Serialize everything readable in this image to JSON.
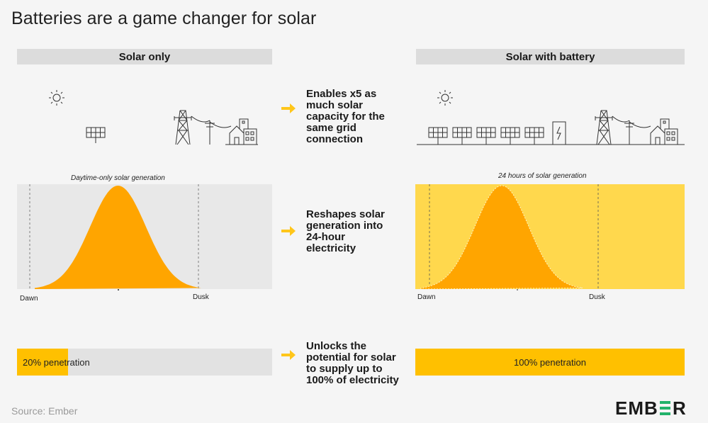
{
  "title": "Batteries are a game changer for solar",
  "left_panel": {
    "header": "Solar only",
    "curve_caption": "Daytime-only solar generation",
    "dawn_label": "Dawn",
    "dusk_label": "Dusk",
    "bar_label": "20% penetration",
    "penetration": 0.2
  },
  "right_panel": {
    "header": "Solar with battery",
    "curve_caption": "24 hours of solar generation",
    "dawn_label": "Dawn",
    "dusk_label": "Dusk",
    "bar_label": "100% penetration",
    "penetration": 1.0
  },
  "benefits": [
    {
      "text": "Enables x5 as\nmuch solar\ncapacity for the\nsame grid\nconnection"
    },
    {
      "text": "Reshapes solar\ngeneration into\n24-hour\nelectricity"
    },
    {
      "text": "Unlocks the\npotential for solar\nto supply up to\n100% of electricity"
    }
  ],
  "source": "Source: Ember",
  "logo_text": "EMBER",
  "colors": {
    "accent": "#ffc000",
    "curve": "#ffa500",
    "battery_fill": "#ffd84d",
    "panel_bg": "#e8e8e8",
    "logo_green": "#23b26b",
    "arrow": "#ffc61a"
  },
  "icons": {
    "sun": "sun-icon",
    "solar_panel": "solar-panel-icon",
    "pylon": "transmission-tower-icon",
    "house": "houses-icon",
    "battery": "battery-icon"
  }
}
